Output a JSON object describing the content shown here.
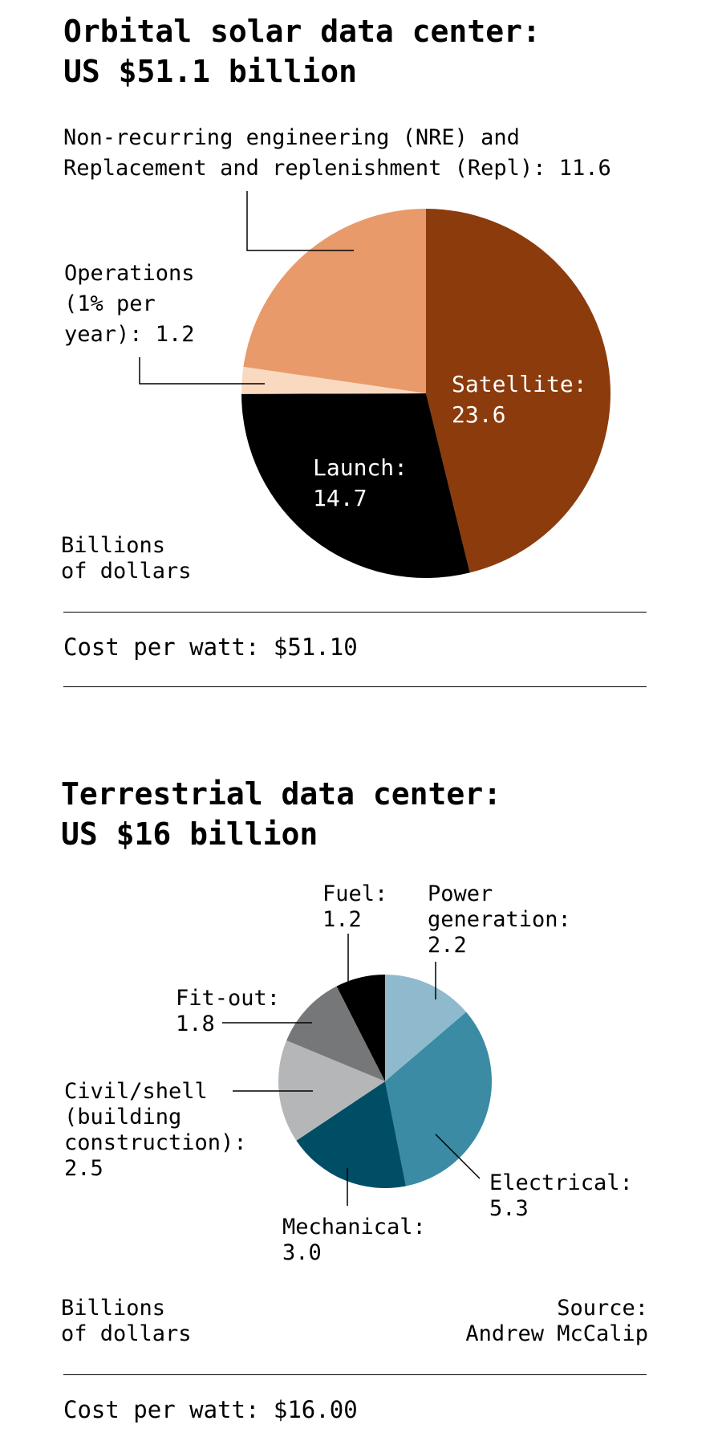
{
  "chart_data": [
    {
      "type": "pie",
      "title_line1": "Orbital solar data center:",
      "title_line2": "US $51.1 billion",
      "units_line1": "Billions",
      "units_line2": "of dollars",
      "cost_per_watt": "Cost per watt: $51.10",
      "slices": [
        {
          "name": "Satellite",
          "value": 23.6,
          "color": "#8b3b0c",
          "label_lines": [
            "Satellite:",
            "23.6"
          ]
        },
        {
          "name": "Launch",
          "value": 14.7,
          "color": "#000000",
          "label_lines": [
            "Launch:",
            "14.7"
          ]
        },
        {
          "name": "Operations (1% per year)",
          "value": 1.2,
          "color": "#fad9c1",
          "label_lines": [
            "Operations",
            "(1% per",
            "year): 1.2"
          ]
        },
        {
          "name": "Non-recurring engineering (NRE) and Replacement and replenishment (Repl)",
          "value": 11.6,
          "color": "#e89a6a",
          "label_lines": [
            "Non-recurring engineering (NRE) and",
            "Replacement and replenishment (Repl): 11.6"
          ]
        }
      ]
    },
    {
      "type": "pie",
      "title_line1": "Terrestrial data center:",
      "title_line2": "US $16 billion",
      "units_line1": "Billions",
      "units_line2": "of dollars",
      "source_line1": "Source:",
      "source_line2": "Andrew McCalip",
      "cost_per_watt": "Cost per watt: $16.00",
      "slices": [
        {
          "name": "Power generation",
          "value": 2.2,
          "color": "#8fbace",
          "label_lines": [
            "Power",
            "generation:",
            "2.2"
          ]
        },
        {
          "name": "Electrical",
          "value": 5.3,
          "color": "#3a8ba3",
          "label_lines": [
            "Electrical:",
            "5.3"
          ]
        },
        {
          "name": "Mechanical",
          "value": 3.0,
          "color": "#004e66",
          "label_lines": [
            "Mechanical:",
            "3.0"
          ]
        },
        {
          "name": "Civil/shell (building construction)",
          "value": 2.5,
          "color": "#b4b6b8",
          "label_lines": [
            "Civil/shell",
            "(building",
            "construction):",
            "2.5"
          ]
        },
        {
          "name": "Fit-out",
          "value": 1.8,
          "color": "#767778",
          "label_lines": [
            "Fit-out:",
            "1.8"
          ]
        },
        {
          "name": "Fuel",
          "value": 1.2,
          "color": "#000000",
          "label_lines": [
            "Fuel:",
            "1.2"
          ]
        }
      ]
    }
  ]
}
